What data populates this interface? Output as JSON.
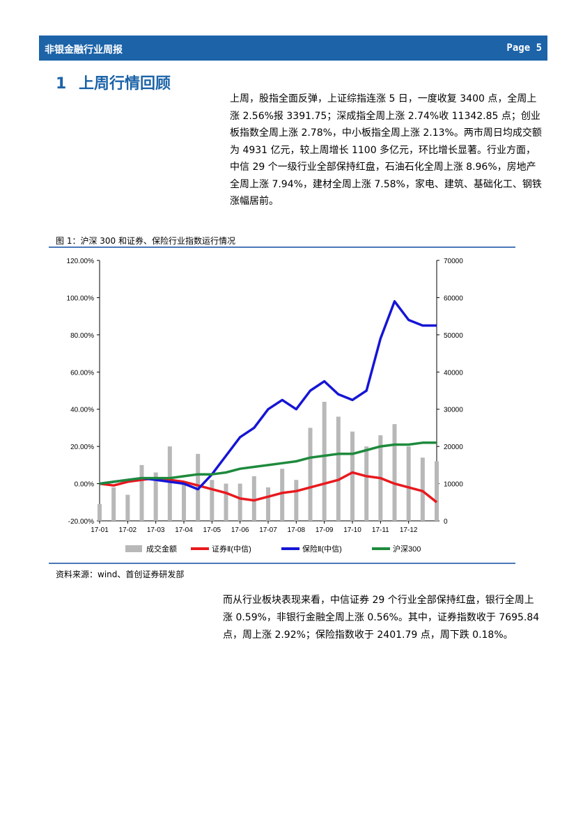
{
  "header": {
    "title": "非银金融行业周报",
    "page": "Page 5"
  },
  "section": {
    "number": "1",
    "title": "上周行情回顾"
  },
  "para1": "上周，股指全面反弹，上证综指连涨 5 日，一度收复 3400 点，全周上涨 2.56%报 3391.75；深成指全周上涨 2.74%收 11342.85 点；创业板指数全周上涨 2.78%，中小板指全周上涨 2.13%。两市周日均成交额为 4931 亿元，较上周增长 1100 多亿元，环比增长显著。行业方面，中信 29 个一级行业全部保持红盘，石油石化全周上涨 8.96%，房地产全周上涨 7.94%，建材全周上涨 7.58%，家电、建筑、基础化工、钢铁涨幅居前。",
  "figure": {
    "caption": "图 1：沪深 300 和证券、保险行业指数运行情况",
    "source": "资料来源：wind、首创证券研发部"
  },
  "para2": "而从行业板块表现来看，中信证券 29 个行业全部保持红盘，银行全周上涨 0.59%，非银行金融全周上涨 0.56%。其中，证券指数收于 7695.84 点，周上涨 2.92%；保险指数收于 2401.79 点，周下跌 0.18%。",
  "chart_data": {
    "type": "line",
    "y_left_ticks": [
      "120.00%",
      "100.00%",
      "80.00%",
      "60.00%",
      "40.00%",
      "20.00%",
      "0.00%",
      "-20.00%"
    ],
    "y_right_ticks": [
      "70000",
      "60000",
      "50000",
      "40000",
      "30000",
      "20000",
      "10000",
      "0"
    ],
    "x_ticks": [
      "17-01",
      "17-02",
      "17-03",
      "17-04",
      "17-05",
      "17-06",
      "17-07",
      "17-08",
      "17-09",
      "17-10",
      "17-11",
      "17-12"
    ],
    "ylim_left": [
      -20,
      120
    ],
    "ylim_right": [
      0,
      70000
    ],
    "series": [
      {
        "name": "成交金额",
        "color": "#b8b8b8",
        "axis": "right",
        "kind": "bar",
        "x": [
          0,
          0.5,
          1,
          1.5,
          2,
          2.5,
          3,
          3.5,
          4,
          4.5,
          5,
          5.5,
          6,
          6.5,
          7,
          7.5,
          8,
          8.5,
          9,
          9.5,
          10,
          10.5,
          11,
          11.5,
          12
        ],
        "values": [
          4500,
          9000,
          7000,
          15000,
          13000,
          20000,
          10000,
          18000,
          11000,
          10000,
          10000,
          12000,
          9000,
          14000,
          11000,
          25000,
          32000,
          28000,
          24000,
          20000,
          23000,
          26000,
          20000,
          17000,
          16000
        ]
      },
      {
        "name": "证券Ⅱ(中信)",
        "color": "#e8191e",
        "axis": "left",
        "kind": "line",
        "x": [
          0,
          0.5,
          1,
          1.5,
          2,
          2.5,
          3,
          3.5,
          4,
          4.5,
          5,
          5.5,
          6,
          6.5,
          7,
          7.5,
          8,
          8.5,
          9,
          9.5,
          10,
          10.5,
          11,
          11.5,
          12
        ],
        "values": [
          0,
          -1,
          1,
          2,
          3,
          2,
          1,
          -1,
          -3,
          -5,
          -8,
          -9,
          -7,
          -5,
          -4,
          -2,
          0,
          2,
          6,
          4,
          3,
          0,
          -2,
          -4,
          -10
        ]
      },
      {
        "name": "保险Ⅱ(中信)",
        "color": "#1515d6",
        "axis": "left",
        "kind": "line",
        "x": [
          0,
          0.5,
          1,
          1.5,
          2,
          2.5,
          3,
          3.5,
          4,
          4.5,
          5,
          5.5,
          6,
          6.5,
          7,
          7.5,
          8,
          8.5,
          9,
          9.5,
          10,
          10.5,
          11,
          11.5,
          12
        ],
        "values": [
          0,
          1,
          2,
          3,
          2,
          1,
          0,
          -3,
          5,
          15,
          25,
          30,
          40,
          45,
          40,
          50,
          55,
          48,
          45,
          50,
          78,
          98,
          88,
          85,
          85
        ]
      },
      {
        "name": "沪深300",
        "color": "#1e8a3c",
        "axis": "left",
        "kind": "line",
        "x": [
          0,
          0.5,
          1,
          1.5,
          2,
          2.5,
          3,
          3.5,
          4,
          4.5,
          5,
          5.5,
          6,
          6.5,
          7,
          7.5,
          8,
          8.5,
          9,
          9.5,
          10,
          10.5,
          11,
          11.5,
          12
        ],
        "values": [
          0,
          1,
          2,
          3,
          3,
          3,
          4,
          5,
          5,
          6,
          8,
          9,
          10,
          11,
          12,
          14,
          15,
          16,
          16,
          18,
          20,
          21,
          21,
          22,
          22
        ]
      }
    ]
  }
}
